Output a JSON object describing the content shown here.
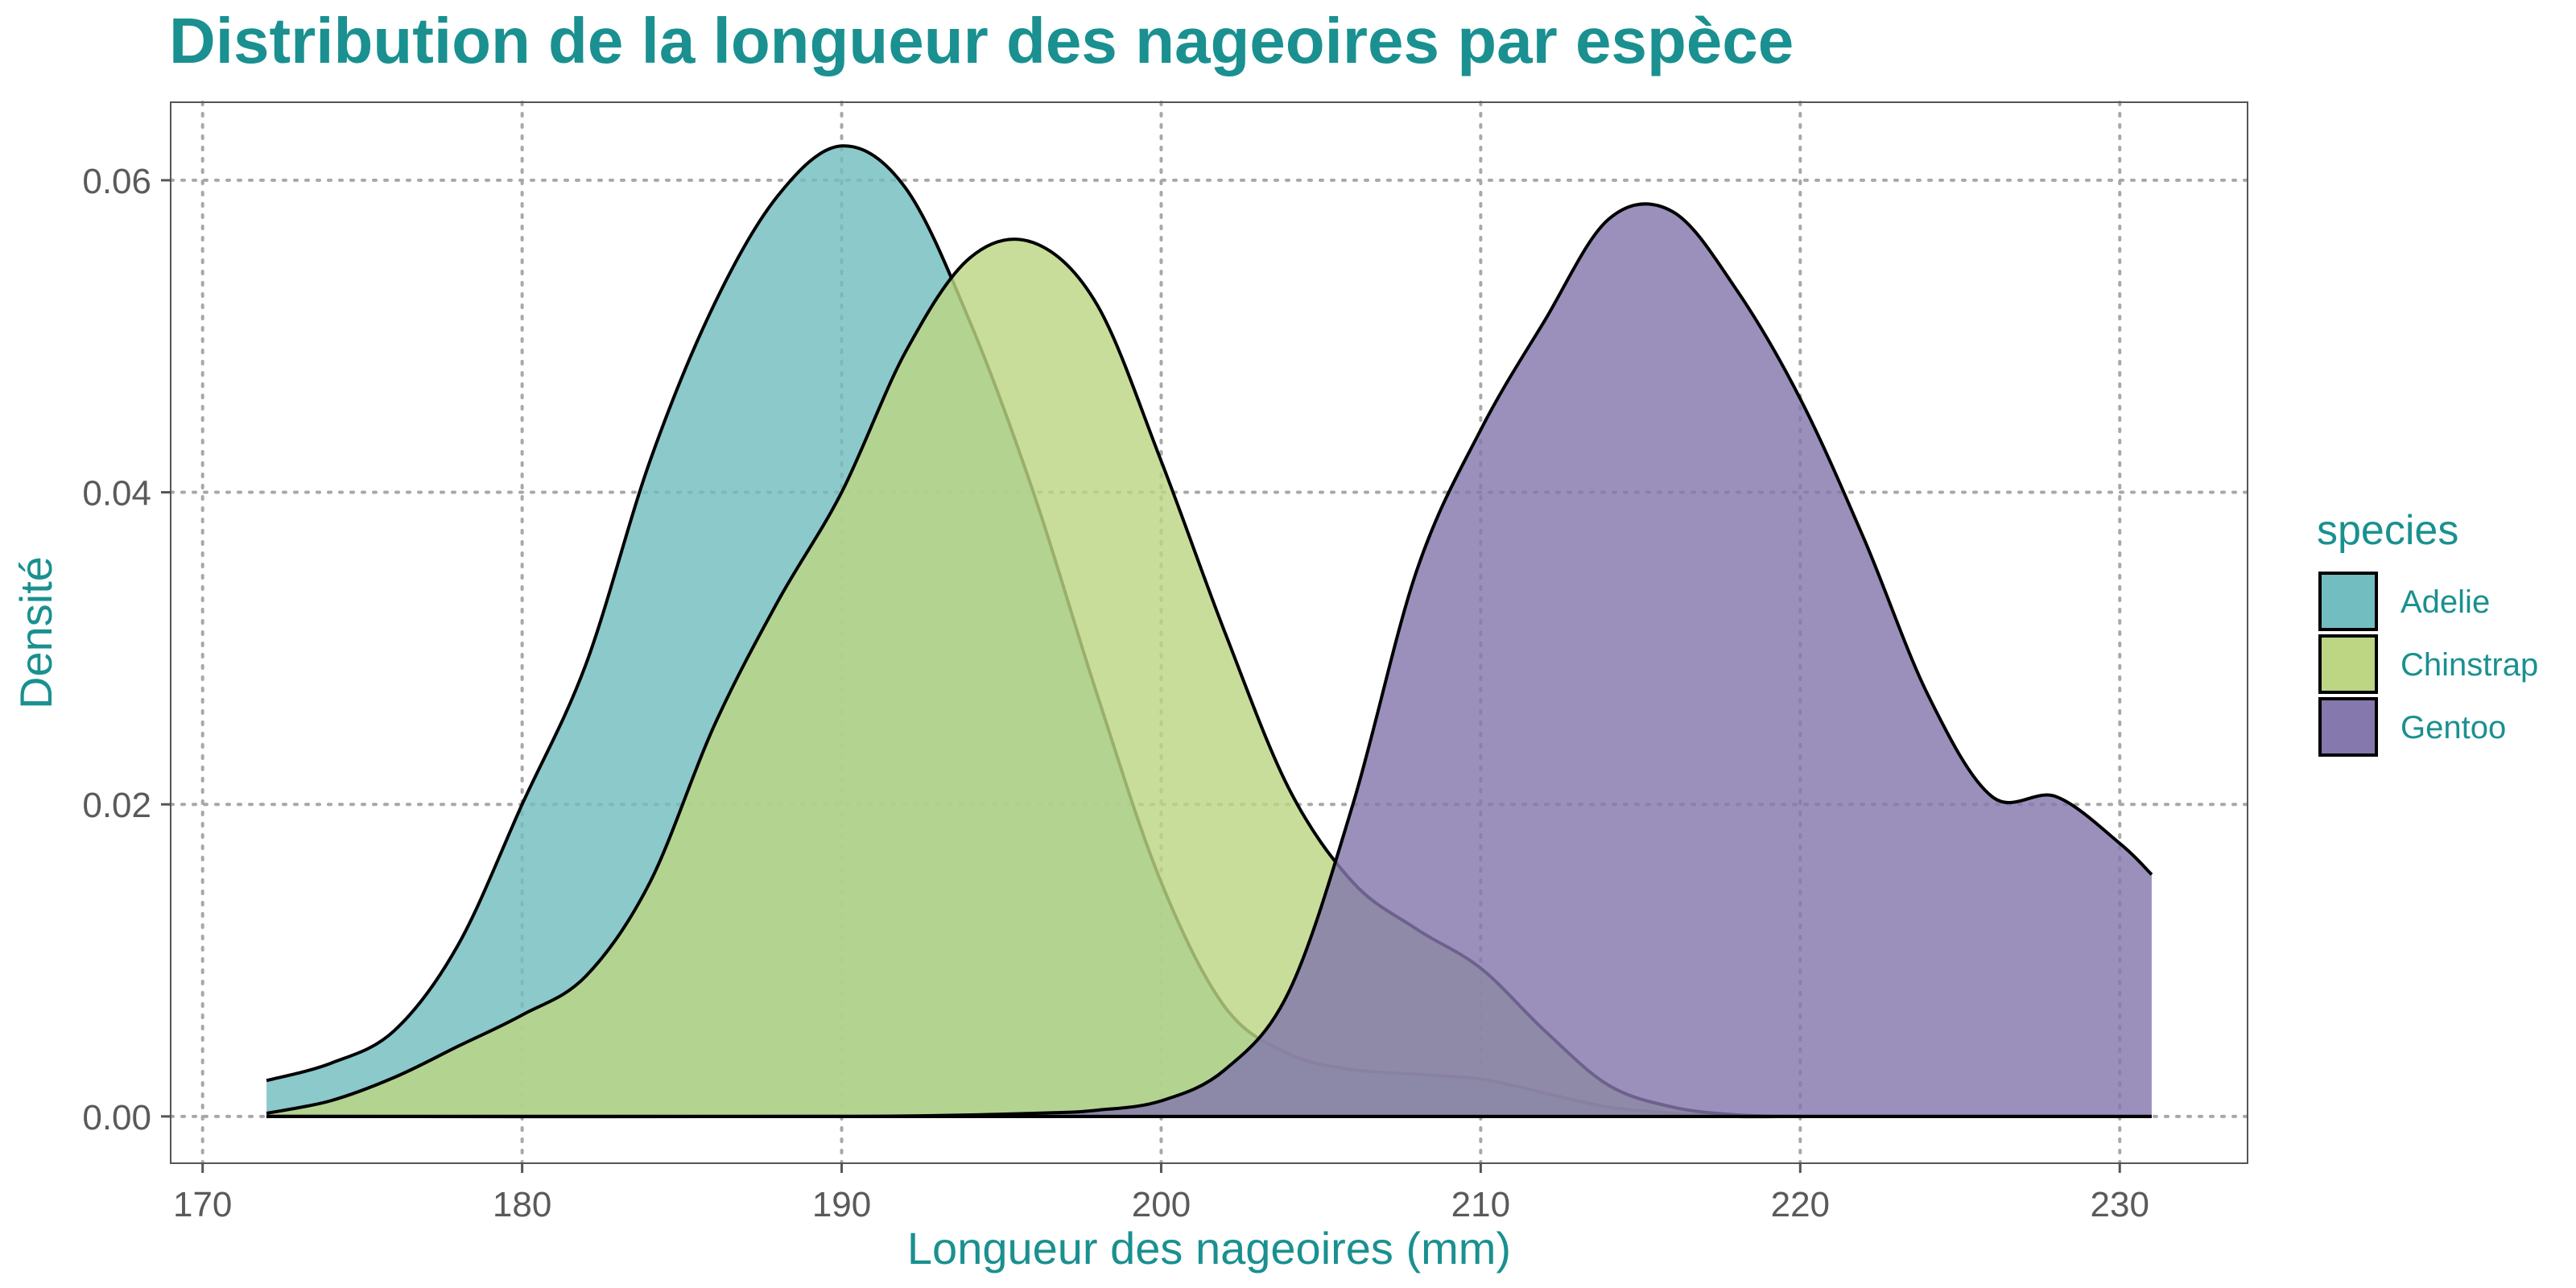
{
  "chart_data": {
    "type": "area",
    "title": "Distribution de la longueur des nageoires par espèce",
    "xlabel": "Longueur des nageoires (mm)",
    "ylabel": "Densité",
    "xlim": [
      169,
      234
    ],
    "ylim": [
      -0.003,
      0.065
    ],
    "x_ticks": [
      170,
      180,
      190,
      200,
      210,
      220,
      230
    ],
    "y_ticks": [
      0.0,
      0.02,
      0.04,
      0.06
    ],
    "y_tick_labels": [
      "0.00",
      "0.02",
      "0.04",
      "0.06"
    ],
    "grid": true,
    "legend": {
      "title": "species",
      "position": "right"
    },
    "colors": {
      "accent": "#1a9090",
      "Adelie": "#72bdbf",
      "Chinstrap": "#bcd684",
      "Gentoo": "#8478ac"
    },
    "series": [
      {
        "name": "Adelie",
        "x": [
          172,
          174,
          176,
          178,
          180,
          182,
          184,
          186,
          188,
          190,
          192,
          194,
          196,
          198,
          200,
          202,
          204,
          206,
          208,
          210,
          212,
          214,
          216,
          218,
          220,
          222,
          224,
          226,
          228,
          230,
          231
        ],
        "y": [
          0.0023,
          0.0034,
          0.0055,
          0.011,
          0.02,
          0.029,
          0.042,
          0.052,
          0.059,
          0.0622,
          0.0595,
          0.051,
          0.04,
          0.027,
          0.015,
          0.007,
          0.004,
          0.003,
          0.0027,
          0.0024,
          0.0015,
          0.0006,
          0.0002,
          0,
          0,
          0,
          0,
          0,
          0,
          0,
          0
        ]
      },
      {
        "name": "Chinstrap",
        "x": [
          172,
          174,
          176,
          178,
          180,
          182,
          184,
          186,
          188,
          190,
          192,
          194,
          196,
          198,
          200,
          202,
          204,
          206,
          208,
          210,
          212,
          214,
          216,
          218,
          220,
          222,
          224,
          226,
          228,
          230,
          231
        ],
        "y": [
          0.0002,
          0.001,
          0.0025,
          0.0045,
          0.0065,
          0.009,
          0.015,
          0.025,
          0.033,
          0.04,
          0.049,
          0.055,
          0.056,
          0.052,
          0.042,
          0.031,
          0.021,
          0.015,
          0.012,
          0.0095,
          0.0055,
          0.002,
          0.0006,
          0.0001,
          0,
          0,
          0,
          0,
          0,
          0,
          0
        ]
      },
      {
        "name": "Gentoo",
        "x": [
          172,
          190,
          196,
          198,
          200,
          202,
          204,
          206,
          208,
          210,
          212,
          214,
          216,
          218,
          220,
          222,
          224,
          226,
          228,
          230,
          231
        ],
        "y": [
          0,
          0,
          0.0002,
          0.0004,
          0.001,
          0.003,
          0.008,
          0.02,
          0.035,
          0.044,
          0.051,
          0.0575,
          0.058,
          0.053,
          0.046,
          0.037,
          0.027,
          0.0205,
          0.0205,
          0.0175,
          0.0155
        ]
      }
    ]
  }
}
